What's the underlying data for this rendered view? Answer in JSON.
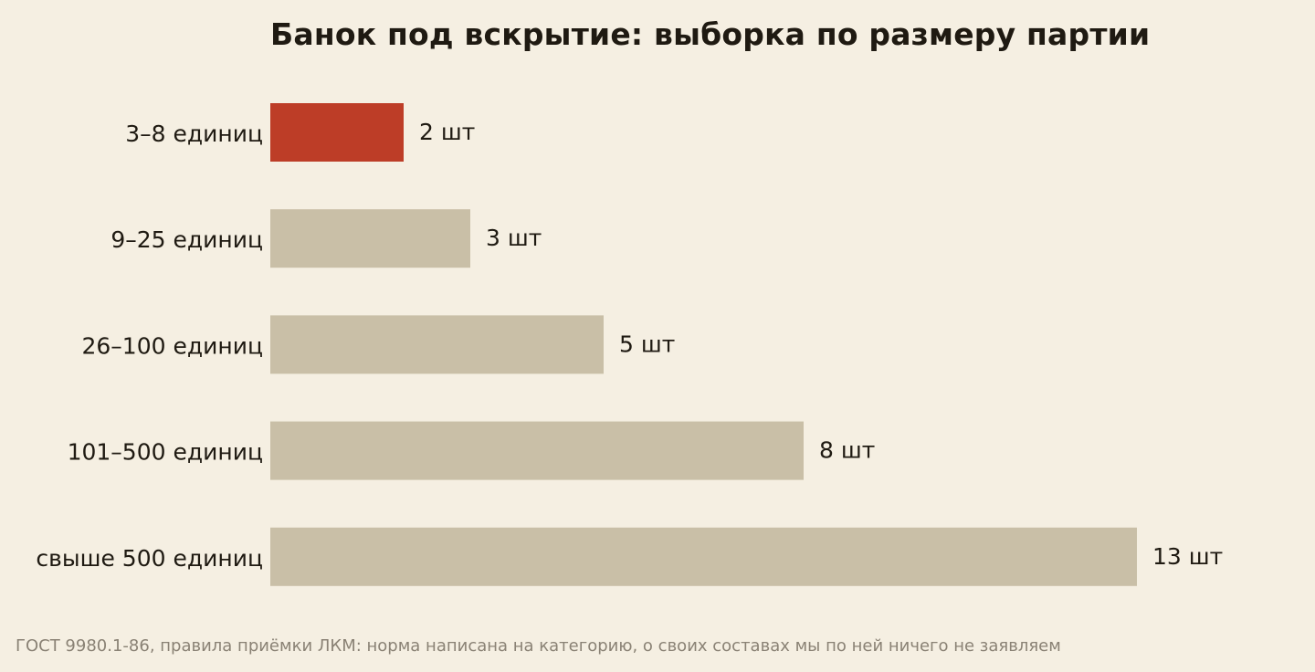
{
  "chart_data": {
    "type": "bar",
    "orientation": "horizontal",
    "title": "Банок под вскрытие: выборка по размеру партии",
    "categories": [
      "3–8 единиц",
      "9–25 единиц",
      "26–100 единиц",
      "101–500 единиц",
      "свыше 500 единиц"
    ],
    "values": [
      2,
      3,
      5,
      8,
      13
    ],
    "value_labels": [
      "2 шт",
      "3 шт",
      "5 шт",
      "8 шт",
      "13 шт"
    ],
    "highlight_index": 0,
    "colors": {
      "highlight": "#bd3d27",
      "default": "#c9bfa7",
      "background": "#f5efe2",
      "text": "#1f1a12",
      "note": "#8a8275"
    },
    "xlim": [
      0,
      13
    ],
    "grid": false,
    "legend": "none",
    "xlabel": "",
    "ylabel": ""
  },
  "footer": {
    "source": "ГОСТ 9980.1-86, правила приёмки ЛКМ: норма написана на категорию, о своих составах мы по ней ничего не заявляем"
  }
}
